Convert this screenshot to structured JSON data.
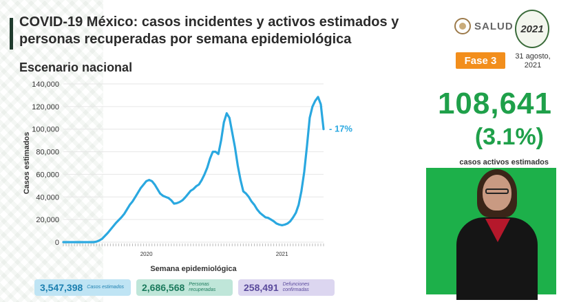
{
  "header": {
    "title": "COVID-19 México: casos incidentes y activos estimados y personas recuperadas por semana epidemiológica",
    "subtitle": "Escenario nacional",
    "brand": "SALUD",
    "year_logo": "2021",
    "phase": "Fase 3",
    "date": "31 agosto, 2021"
  },
  "highlight": {
    "active_cases": "108,641",
    "active_pct": "(3.1%)",
    "label": "casos activos estimados"
  },
  "stats": [
    {
      "value": "3,547,398",
      "label": "Casos estimados"
    },
    {
      "value": "2,686,568",
      "label": "Personas recuperadas"
    },
    {
      "value": "258,491",
      "label": "Defunciones confirmadas"
    }
  ],
  "colors": {
    "line": "#2aa8e0",
    "accent_green": "#1fa04a",
    "phase_orange": "#f28e1c"
  },
  "chart_data": {
    "type": "line",
    "title": "",
    "xlabel": "Semana epidemiológica",
    "ylabel": "Casos estimados",
    "ylim": [
      0,
      140000
    ],
    "yticks": [
      0,
      20000,
      40000,
      60000,
      80000,
      100000,
      120000,
      140000
    ],
    "ytick_labels": [
      "0",
      "20,000",
      "40,000",
      "60,000",
      "80,000",
      "100,000",
      "120,000",
      "140,000"
    ],
    "year_labels": [
      {
        "label": "2020",
        "week_index": 30
      },
      {
        "label": "2021",
        "week_index": 79
      }
    ],
    "annotation": "- 17%",
    "grid": true,
    "series": [
      {
        "values": [
          0,
          0,
          0,
          0,
          0,
          0,
          0,
          0,
          0,
          0,
          0,
          0,
          500,
          1500,
          3000,
          5500,
          8000,
          11000,
          14000,
          17000,
          19500,
          22000,
          25000,
          29000,
          33000,
          36000,
          40000,
          44000,
          48000,
          51000,
          54000,
          55000,
          54000,
          51000,
          47000,
          43000,
          41000,
          40000,
          39000,
          37000,
          34000,
          34500,
          35500,
          37000,
          39500,
          42500,
          45500,
          47000,
          49500,
          51000,
          55000,
          60000,
          66000,
          74000,
          80000,
          80000,
          78000,
          90000,
          106000,
          114000,
          110000,
          97000,
          84000,
          68000,
          55000,
          45000,
          43000,
          40000,
          36000,
          33000,
          29000,
          26000,
          24000,
          22000,
          21500,
          20000,
          18500,
          16500,
          15500,
          15000,
          15500,
          16500,
          18500,
          22000,
          26000,
          33000,
          45000,
          62000,
          85000,
          110000,
          120000,
          125000,
          128500,
          122000,
          100000
        ]
      }
    ]
  }
}
